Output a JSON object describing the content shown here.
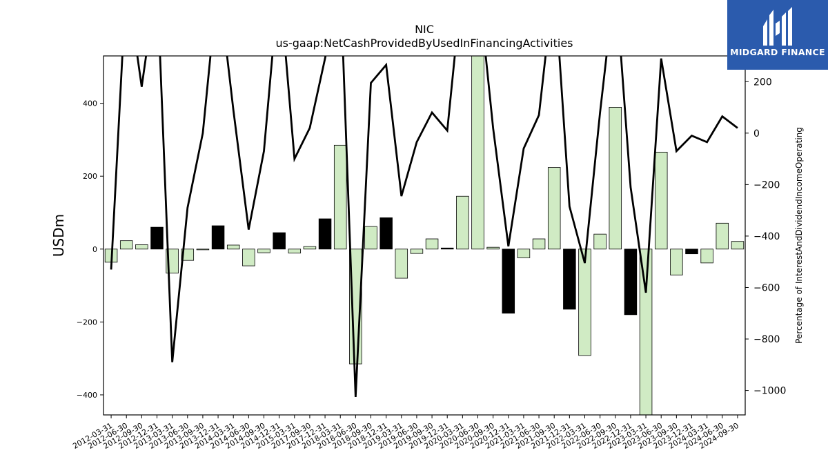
{
  "chart_data": {
    "type": "bar+line",
    "title": "NIC",
    "subtitle": "us-gaap:NetCashProvidedByUsedInFinancingActivities",
    "ylabel_left": "USDm",
    "ylabel_right": "Percentage of InterestAndDividendIncomeOperating",
    "ylim_left": [
      -455,
      530
    ],
    "ylim_right": [
      -1095,
      300
    ],
    "left_ticks": [
      400,
      200,
      0,
      -200,
      -400
    ],
    "right_ticks": [
      200,
      0,
      -200,
      -400,
      -600,
      -800,
      -1000
    ],
    "categories": [
      "2012-03-31",
      "2012-06-30",
      "2012-09-30",
      "2012-12-31",
      "2013-03-31",
      "2013-06-30",
      "2013-09-30",
      "2013-12-31",
      "2014-03-31",
      "2014-06-30",
      "2014-09-30",
      "2014-12-31",
      "2015-03-31",
      "2017-09-30",
      "2017-12-31",
      "2018-03-31",
      "2018-06-30",
      "2018-09-30",
      "2018-12-31",
      "2019-03-31",
      "2019-06-30",
      "2019-09-30",
      "2019-12-31",
      "2020-03-31",
      "2020-06-30",
      "2020-09-30",
      "2020-12-31",
      "2021-03-31",
      "2021-06-30",
      "2021-09-30",
      "2021-12-31",
      "2022-03-31",
      "2022-06-30",
      "2022-09-30",
      "2022-12-31",
      "2023-03-31",
      "2023-06-30",
      "2023-09-30",
      "2023-12-31",
      "2024-03-31",
      "2024-06-30",
      "2024-09-30"
    ],
    "series": [
      {
        "kind": "bar",
        "values": [
          -36,
          23,
          12,
          60,
          -66,
          -31,
          -2,
          64,
          11,
          -46,
          -10,
          45,
          -11,
          7,
          83,
          285,
          -315,
          62,
          86,
          -80,
          -12,
          28,
          3,
          145,
          600,
          5,
          -176,
          -24,
          28,
          224,
          -165,
          -292,
          41,
          389,
          -180,
          -900,
          266,
          -71,
          -13,
          -38,
          71,
          21
        ],
        "colors": [
          "light",
          "light",
          "light",
          "dark",
          "light",
          "light",
          "light",
          "dark",
          "light",
          "light",
          "light",
          "dark",
          "light",
          "light",
          "dark",
          "light",
          "light",
          "light",
          "dark",
          "light",
          "light",
          "light",
          "dark",
          "light",
          "light",
          "light",
          "dark",
          "light",
          "light",
          "light",
          "dark",
          "light",
          "light",
          "light",
          "dark",
          "light",
          "light",
          "light",
          "dark",
          "light",
          "light",
          "light"
        ]
      },
      {
        "kind": "line",
        "axis": "right",
        "values": [
          -530,
          600,
          180,
          600,
          -890,
          -290,
          0,
          600,
          90,
          -375,
          -70,
          600,
          -100,
          20,
          290,
          600,
          -1025,
          195,
          265,
          -245,
          -35,
          80,
          10,
          600,
          600,
          20,
          -440,
          -60,
          70,
          600,
          -285,
          -505,
          80,
          600,
          -210,
          -620,
          290,
          -70,
          -10,
          -35,
          65,
          20
        ]
      }
    ],
    "colors": {
      "light": "#d0ebc4",
      "dark": "#000000",
      "line": "#000000",
      "axis": "#000000"
    }
  },
  "logo": {
    "text": "MIDGARD FINANCE",
    "bg": "#2b5bad"
  }
}
